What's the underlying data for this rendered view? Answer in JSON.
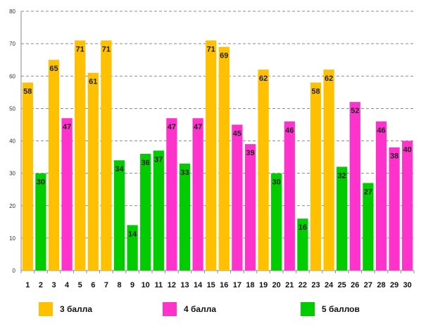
{
  "chart_data": {
    "type": "bar",
    "categories": [
      "1",
      "2",
      "3",
      "4",
      "5",
      "6",
      "7",
      "8",
      "9",
      "10",
      "11",
      "12",
      "13",
      "14",
      "15",
      "16",
      "17",
      "18",
      "19",
      "20",
      "21",
      "22",
      "23",
      "24",
      "25",
      "26",
      "27",
      "28",
      "29",
      "30"
    ],
    "values": [
      58,
      30,
      65,
      47,
      71,
      61,
      71,
      34,
      14,
      36,
      37,
      47,
      33,
      47,
      71,
      69,
      45,
      39,
      62,
      30,
      46,
      16,
      58,
      62,
      32,
      52,
      27,
      46,
      38,
      40
    ],
    "groups": [
      0,
      2,
      0,
      1,
      0,
      0,
      0,
      2,
      2,
      2,
      2,
      1,
      2,
      1,
      0,
      0,
      1,
      1,
      0,
      2,
      1,
      2,
      0,
      0,
      2,
      1,
      2,
      1,
      1,
      1
    ],
    "series": [
      {
        "name": "3 балла",
        "color": "#FFC000"
      },
      {
        "name": "4 балла",
        "color": "#FF33CC"
      },
      {
        "name": "5 баллов",
        "color": "#00CC00"
      }
    ],
    "ylim": [
      0,
      80
    ],
    "yticks": [
      0,
      10,
      20,
      30,
      40,
      50,
      60,
      70,
      80
    ],
    "grid": true,
    "legend_position": "bottom"
  }
}
